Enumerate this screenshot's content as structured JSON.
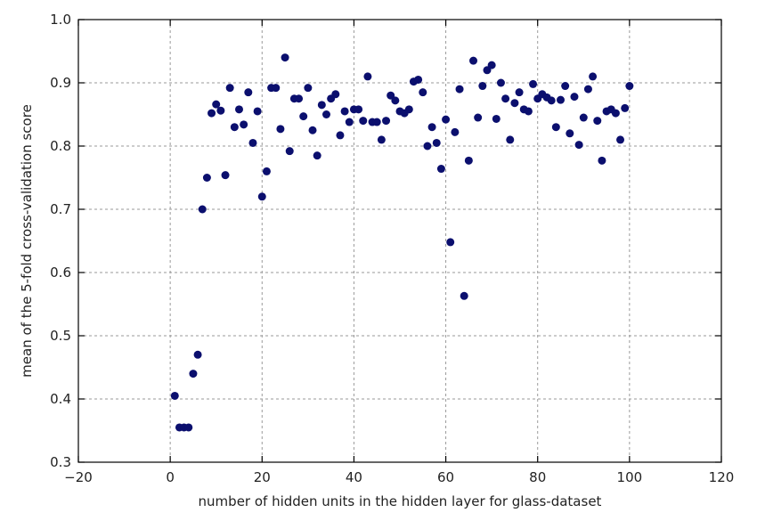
{
  "chart_data": {
    "type": "scatter",
    "xlabel": "number of hidden units in the hidden layer for glass-dataset",
    "ylabel": "mean of the 5-fold cross-validation score",
    "xlim": [
      -20,
      120
    ],
    "ylim": [
      0.3,
      1.0
    ],
    "x_ticks": [
      "−20",
      "0",
      "20",
      "40",
      "60",
      "80",
      "100",
      "120"
    ],
    "y_ticks": [
      "0.3",
      "0.4",
      "0.5",
      "0.6",
      "0.7",
      "0.8",
      "0.9",
      "1.0"
    ],
    "x_tick_values": [
      -20,
      0,
      20,
      40,
      60,
      80,
      100,
      120
    ],
    "y_tick_values": [
      0.3,
      0.4,
      0.5,
      0.6,
      0.7,
      0.8,
      0.9,
      1.0
    ],
    "grid": true,
    "marker_color": "#0b0f6e",
    "x": [
      1,
      2,
      3,
      4,
      5,
      6,
      7,
      8,
      9,
      10,
      11,
      12,
      13,
      14,
      15,
      16,
      17,
      18,
      19,
      20,
      21,
      22,
      23,
      24,
      25,
      26,
      27,
      28,
      29,
      30,
      31,
      32,
      33,
      34,
      35,
      36,
      37,
      38,
      39,
      40,
      41,
      42,
      43,
      44,
      45,
      46,
      47,
      48,
      49,
      50,
      51,
      52,
      53,
      54,
      55,
      56,
      57,
      58,
      59,
      60,
      61,
      62,
      63,
      64,
      65,
      66,
      67,
      68,
      69,
      70,
      71,
      72,
      73,
      74,
      75,
      76,
      77,
      78,
      79,
      80,
      81,
      82,
      83,
      84,
      85,
      86,
      87,
      88,
      89,
      90,
      91,
      92,
      93,
      94,
      95,
      96,
      97,
      98,
      99,
      100
    ],
    "y": [
      0.405,
      0.355,
      0.355,
      0.355,
      0.44,
      0.47,
      0.7,
      0.75,
      0.852,
      0.866,
      0.856,
      0.754,
      0.892,
      0.83,
      0.858,
      0.834,
      0.885,
      0.805,
      0.855,
      0.72,
      0.76,
      0.892,
      0.892,
      0.827,
      0.94,
      0.792,
      0.875,
      0.875,
      0.847,
      0.892,
      0.825,
      0.785,
      0.865,
      0.85,
      0.875,
      0.882,
      0.817,
      0.855,
      0.838,
      0.858,
      0.858,
      0.84,
      0.91,
      0.838,
      0.838,
      0.81,
      0.84,
      0.88,
      0.872,
      0.855,
      0.852,
      0.858,
      0.902,
      0.905,
      0.885,
      0.8,
      0.83,
      0.805,
      0.764,
      0.842,
      0.648,
      0.822,
      0.89,
      0.563,
      0.777,
      0.935,
      0.845,
      0.895,
      0.92,
      0.928,
      0.843,
      0.9,
      0.875,
      0.81,
      0.868,
      0.885,
      0.858,
      0.855,
      0.898,
      0.875,
      0.882,
      0.877,
      0.872,
      0.83,
      0.873,
      0.895,
      0.82,
      0.878,
      0.802,
      0.845,
      0.89,
      0.91,
      0.84,
      0.777,
      0.855,
      0.858,
      0.852,
      0.81,
      0.86,
      0.895
    ]
  }
}
